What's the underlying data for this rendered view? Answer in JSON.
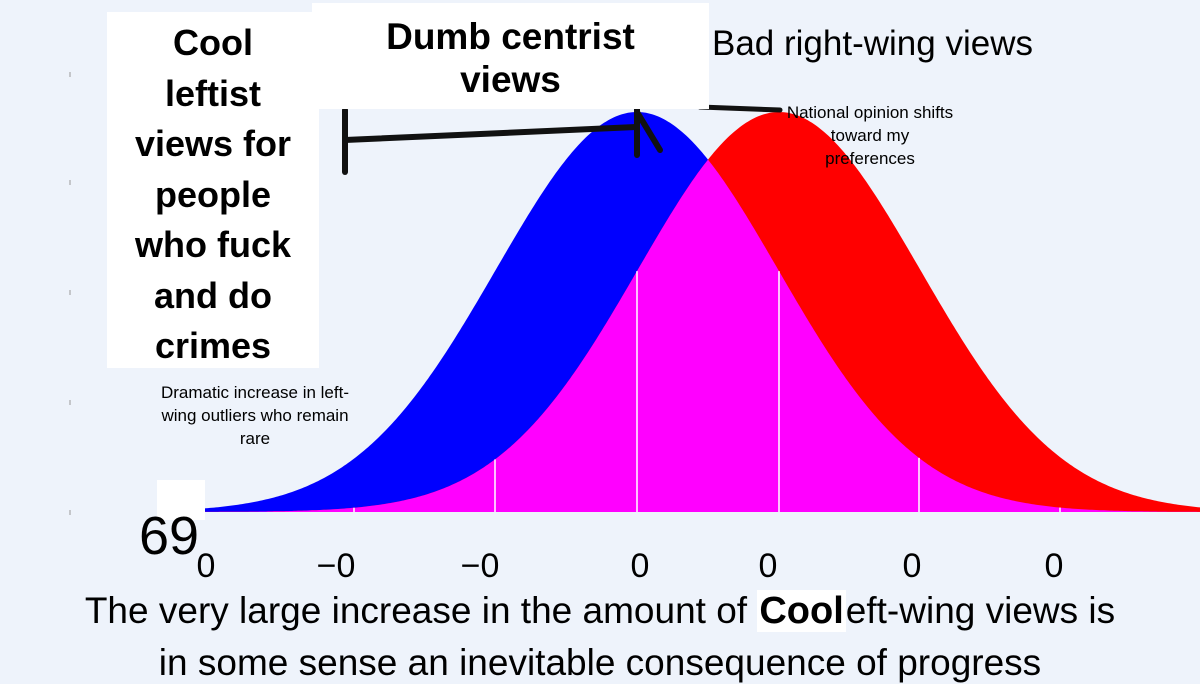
{
  "chart_data": {
    "type": "area",
    "colors": {
      "left_curve": "#0000ff",
      "right_curve": "#ff0000",
      "overlap": "#ff00ff",
      "background": "#eef3fb",
      "gridline": "#ffffff"
    },
    "series": [
      {
        "values": "left-shifted bell curve"
      },
      {
        "values": "right-shifted bell curve"
      }
    ],
    "x_tick_labels": [
      "0",
      "−0",
      "−0",
      "0",
      "0",
      "0",
      "0"
    ],
    "annotations": {
      "right_label": "Bad right-wing views",
      "shift_note": "National opinion shifts toward my preferences",
      "outlier_note": "Dramatic increase in left-wing outliers who remain rare"
    },
    "caption": {
      "line1_prefix": "The very large increase in the amount of ",
      "line1_suffix": "eft-wing views is",
      "line2": "in some sense an inevitable consequence of progress"
    }
  },
  "overlays": {
    "cool_box": [
      "Cool",
      "leftist",
      "views for",
      "people",
      "who fuck",
      "and do",
      "crimes"
    ],
    "centrist_box": [
      "Dumb centrist",
      "views"
    ],
    "number_69": "69",
    "cool_word": "Cool"
  }
}
